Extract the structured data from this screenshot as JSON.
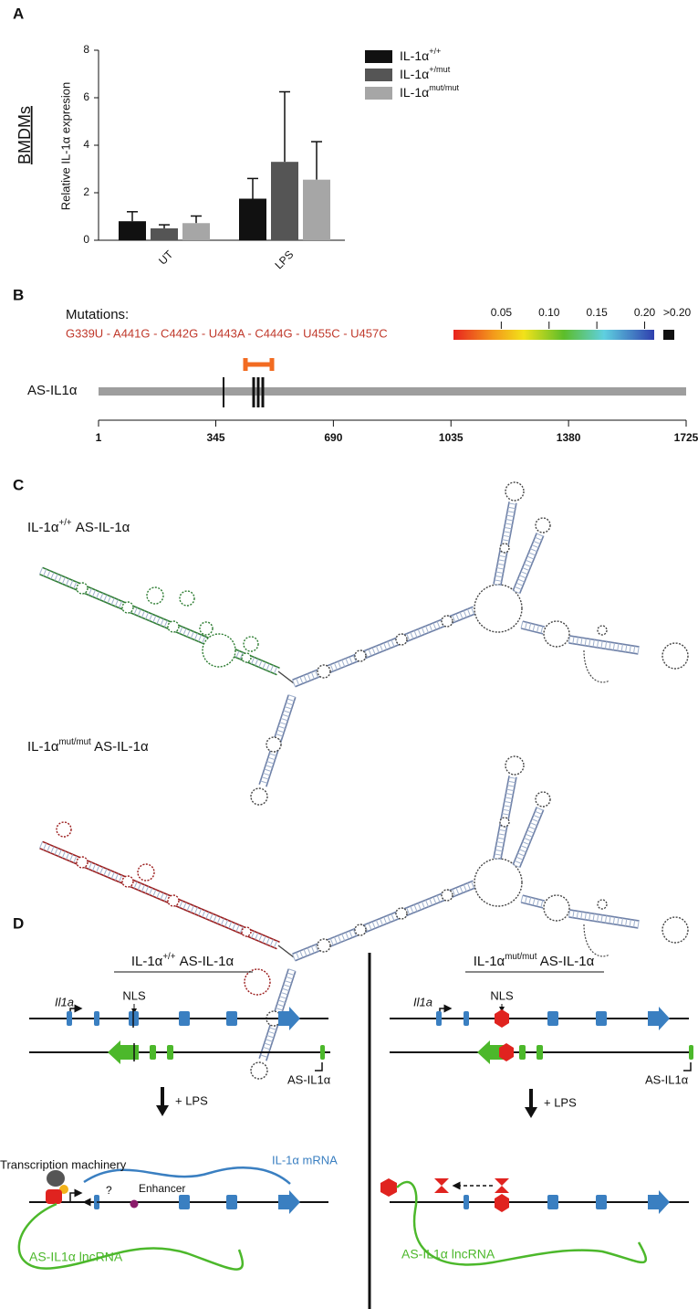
{
  "panels": {
    "a": "A",
    "b": "B",
    "c": "C",
    "d": "D"
  },
  "chart_data": {
    "type": "bar",
    "side_label": "BMDMs",
    "y_label": "Relative IL-1α expresion",
    "categories": [
      "UT",
      "LPS"
    ],
    "series": [
      {
        "name": "IL-1α+/+",
        "color": "#111111",
        "values": [
          0.8,
          1.75
        ],
        "errors": [
          0.4,
          0.85
        ]
      },
      {
        "name": "IL-1α+/mut",
        "color": "#555555",
        "values": [
          0.5,
          3.3
        ],
        "errors": [
          0.15,
          2.95
        ]
      },
      {
        "name": "IL-1αmut/mut",
        "color": "#a6a6a6",
        "values": [
          0.72,
          2.55
        ],
        "errors": [
          0.3,
          1.6
        ]
      }
    ],
    "ylim": [
      0,
      8
    ],
    "yticks": [
      0,
      2,
      4,
      6,
      8
    ]
  },
  "panel_b": {
    "mutations_label": "Mutations:",
    "mutations": "G339U - A441G - C442G - U443A - C444G - U455C - U457C",
    "scale_lim": [
      0,
      0.21
    ],
    "scale_ticks": [
      0.05,
      {
        "value": 0.1,
        "label": "0.10"
      },
      0.15,
      {
        "value": 0.2,
        "label": "0.20"
      }
    ],
    "scale_max_label": ">0.20",
    "gene_label": "AS-IL1α",
    "xlim": [
      1,
      1725
    ],
    "xticks": [
      1,
      345,
      690,
      1035,
      1380,
      1725
    ]
  },
  "panel_c": {
    "wild_type_label": "IL-1α+/+ AS-IL-1α",
    "mutant_label": "IL-1αmut/mut AS-IL-1α"
  },
  "panel_d": {
    "left": {
      "title": "IL-1α+/+ AS-IL-1α",
      "gene": "Il1a",
      "nls": "NLS",
      "antisense": "AS-IL1α",
      "lps": "+ LPS",
      "machinery": "Transcription machinery",
      "mrna": "IL-1α mRNA",
      "question": "?",
      "enhancer": "Enhancer",
      "lncrna": "AS-IL1α lncRNA"
    },
    "right": {
      "title": "IL-1αmut/mut AS-IL-1α",
      "gene": "Il1a",
      "nls": "NLS",
      "antisense": "AS-IL1α",
      "lps": "+ LPS",
      "lncrna": "AS-IL1α lncRNA"
    }
  }
}
